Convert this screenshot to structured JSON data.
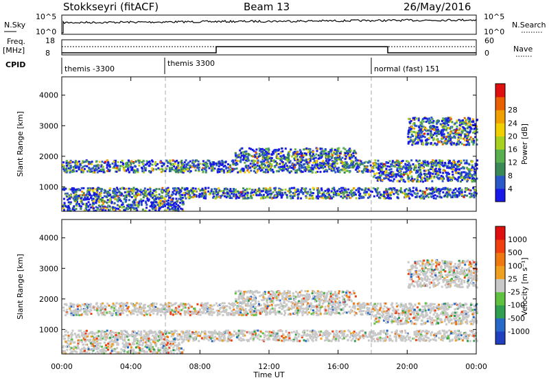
{
  "header": {
    "station": "Stokkseyri (fitACF)",
    "beam": "Beam 13",
    "date": "26/May/2016"
  },
  "summary": {
    "nsky_label": "N.Sky",
    "nsky_ticks": [
      "10^5",
      "10^0"
    ],
    "nsearch_label": "N.Search",
    "nsearch_ticks": [
      "10^5",
      "10^0"
    ],
    "freq_label": "Freq.",
    "freq_unit": "[MHz]",
    "freq_ticks": [
      "18",
      "8"
    ],
    "nave_label": "Nave",
    "nave_ticks": [
      "60",
      "0"
    ],
    "cpid_label": "CPID",
    "programs": [
      "themis -3300",
      "themis 3300",
      "normal (fast) 151"
    ]
  },
  "chart_data": [
    {
      "type": "heatmap",
      "name": "power",
      "ylabel": "Slant Range [km]",
      "xlabel": "",
      "x_ticks": [
        "00:00",
        "04:00",
        "08:00",
        "12:00",
        "16:00",
        "20:00",
        "00:00"
      ],
      "y_ticks": [
        "1000",
        "2000",
        "3000",
        "4000"
      ],
      "ylim": [
        200,
        4600
      ],
      "xlim_hours": [
        0,
        24
      ],
      "colorbar": {
        "label": "Power [dB]",
        "ticks": [
          "4",
          "8",
          "12",
          "16",
          "20",
          "24",
          "28"
        ],
        "colors": [
          "#1818e8",
          "#2a58c8",
          "#3a8a58",
          "#58b050",
          "#a8d020",
          "#f0d000",
          "#f0a000",
          "#e86000",
          "#e01010"
        ]
      },
      "scatter_bands": [
        {
          "start_h": 0,
          "end_h": 24,
          "range_km": [
            1500,
            1900
          ]
        },
        {
          "start_h": 0,
          "end_h": 24,
          "range_km": [
            650,
            1000
          ]
        },
        {
          "start_h": 0,
          "end_h": 7,
          "range_km": [
            250,
            650
          ]
        },
        {
          "start_h": 10,
          "end_h": 17,
          "range_km": [
            1900,
            2300
          ]
        },
        {
          "start_h": 18,
          "end_h": 24,
          "range_km": [
            1200,
            1500
          ]
        },
        {
          "start_h": 20,
          "end_h": 24,
          "range_km": [
            2400,
            3300
          ]
        }
      ]
    },
    {
      "type": "heatmap",
      "name": "velocity",
      "ylabel": "Slant Range [km]",
      "xlabel": "Time UT",
      "x_ticks": [
        "00:00",
        "04:00",
        "08:00",
        "12:00",
        "16:00",
        "20:00",
        "00:00"
      ],
      "y_ticks": [
        "1000",
        "2000",
        "3000",
        "4000"
      ],
      "ylim": [
        200,
        4600
      ],
      "xlim_hours": [
        0,
        24
      ],
      "colorbar": {
        "label": "Velocity [m s⁻¹]",
        "ticks": [
          "1000",
          "500",
          "100",
          "25",
          "-25",
          "-100",
          "-500",
          "-1000"
        ],
        "colors": [
          "#2040c0",
          "#2868c8",
          "#30a050",
          "#60c040",
          "#c8c8c8",
          "#f0a020",
          "#f07810",
          "#f04010",
          "#e01010"
        ]
      },
      "scatter_bands": [
        {
          "start_h": 0,
          "end_h": 24,
          "range_km": [
            1500,
            1900
          ]
        },
        {
          "start_h": 0,
          "end_h": 24,
          "range_km": [
            650,
            1000
          ]
        },
        {
          "start_h": 0,
          "end_h": 7,
          "range_km": [
            250,
            650
          ]
        },
        {
          "start_h": 10,
          "end_h": 17,
          "range_km": [
            1900,
            2300
          ]
        },
        {
          "start_h": 18,
          "end_h": 24,
          "range_km": [
            1200,
            1500
          ]
        },
        {
          "start_h": 20,
          "end_h": 24,
          "range_km": [
            2400,
            3300
          ]
        }
      ]
    }
  ]
}
